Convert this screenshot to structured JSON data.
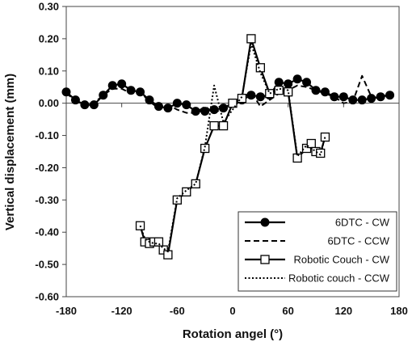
{
  "chart_data": {
    "type": "line",
    "title": "",
    "xlabel": "Rotation angel (°)",
    "ylabel": "Vertical displacement (mm)",
    "xlim": [
      -180,
      180
    ],
    "ylim": [
      -0.6,
      0.3
    ],
    "xticks": [
      -180,
      -120,
      -60,
      0,
      60,
      120,
      180
    ],
    "yticks": [
      -0.6,
      -0.5,
      -0.4,
      -0.3,
      -0.2,
      -0.1,
      0,
      0.1,
      0.2,
      0.3
    ],
    "xtick_labels": [
      "-180",
      "-120",
      "-60",
      "0",
      "60",
      "120",
      "180"
    ],
    "ytick_labels": [
      "-0.60",
      "-0.50",
      "-0.40",
      "-0.30",
      "-0.20",
      "-0.10",
      "0.00",
      "0.10",
      "0.20",
      "0.30"
    ],
    "grid": false,
    "legend_position": "bottom-right",
    "series": [
      {
        "name": "6DTC - CW",
        "style": "solid",
        "marker": "circle-filled",
        "x": [
          -180,
          -170,
          -160,
          -150,
          -140,
          -130,
          -120,
          -110,
          -100,
          -90,
          -80,
          -70,
          -60,
          -50,
          -40,
          -30,
          -20,
          -10,
          0,
          10,
          20,
          30,
          40,
          50,
          60,
          70,
          80,
          90,
          100,
          110,
          120,
          130,
          140,
          150,
          160,
          170
        ],
        "y": [
          0.035,
          0.01,
          -0.005,
          -0.005,
          0.025,
          0.055,
          0.06,
          0.04,
          0.035,
          0.01,
          -0.01,
          -0.015,
          0.0,
          -0.005,
          -0.025,
          -0.025,
          -0.02,
          -0.015,
          0.0,
          0.01,
          0.025,
          0.02,
          0.025,
          0.065,
          0.06,
          0.075,
          0.065,
          0.04,
          0.035,
          0.02,
          0.02,
          0.01,
          0.01,
          0.015,
          0.02,
          0.025
        ]
      },
      {
        "name": "6DTC - CCW",
        "style": "dashed",
        "marker": "none",
        "x": [
          -180,
          -170,
          -160,
          -150,
          -140,
          -130,
          -120,
          -110,
          -100,
          -90,
          -80,
          -70,
          -60,
          -50,
          -40,
          -30,
          -20,
          -10,
          0,
          10,
          20,
          30,
          40,
          50,
          60,
          70,
          80,
          90,
          100,
          110,
          120,
          130,
          140,
          150,
          160,
          170
        ],
        "y": [
          0.03,
          0.01,
          0.0,
          0.0,
          0.025,
          0.045,
          0.045,
          0.03,
          0.035,
          0.005,
          -0.015,
          -0.005,
          -0.02,
          -0.03,
          -0.03,
          -0.01,
          -0.03,
          -0.015,
          0.0,
          0.015,
          0.035,
          -0.01,
          0.01,
          0.03,
          0.04,
          0.055,
          0.05,
          0.04,
          0.03,
          0.02,
          0.0,
          0.005,
          0.085,
          0.02,
          0.015,
          0.035
        ]
      },
      {
        "name": "Robotic Couch - CW",
        "style": "solid",
        "marker": "square-open",
        "x": [
          -100,
          -95,
          -90,
          -85,
          -80,
          -75,
          -70,
          -60,
          -50,
          -40,
          -30,
          -20,
          -10,
          0,
          10,
          20,
          30,
          40,
          50,
          60,
          70,
          80,
          85,
          90,
          95,
          100
        ],
        "y": [
          -0.38,
          -0.43,
          -0.435,
          -0.43,
          -0.43,
          -0.455,
          -0.47,
          -0.3,
          -0.275,
          -0.25,
          -0.14,
          -0.07,
          -0.07,
          0.0,
          0.015,
          0.2,
          0.11,
          0.03,
          0.04,
          0.035,
          -0.17,
          -0.14,
          -0.125,
          -0.15,
          -0.155,
          -0.105
        ]
      },
      {
        "name": "Robotic couch - CCW",
        "style": "dotted",
        "marker": "none",
        "x": [
          -100,
          -95,
          -90,
          -85,
          -80,
          -75,
          -70,
          -60,
          -50,
          -40,
          -30,
          -20,
          -10,
          0,
          10,
          20,
          30,
          40,
          50,
          60,
          70,
          80,
          85,
          90,
          95,
          100
        ],
        "y": [
          -0.38,
          -0.42,
          -0.43,
          -0.435,
          -0.435,
          -0.45,
          -0.46,
          -0.295,
          -0.27,
          -0.25,
          -0.135,
          0.055,
          -0.06,
          -0.02,
          0.02,
          0.185,
          0.095,
          0.03,
          0.045,
          0.04,
          -0.165,
          -0.13,
          -0.14,
          -0.15,
          -0.16,
          -0.105
        ]
      }
    ]
  }
}
